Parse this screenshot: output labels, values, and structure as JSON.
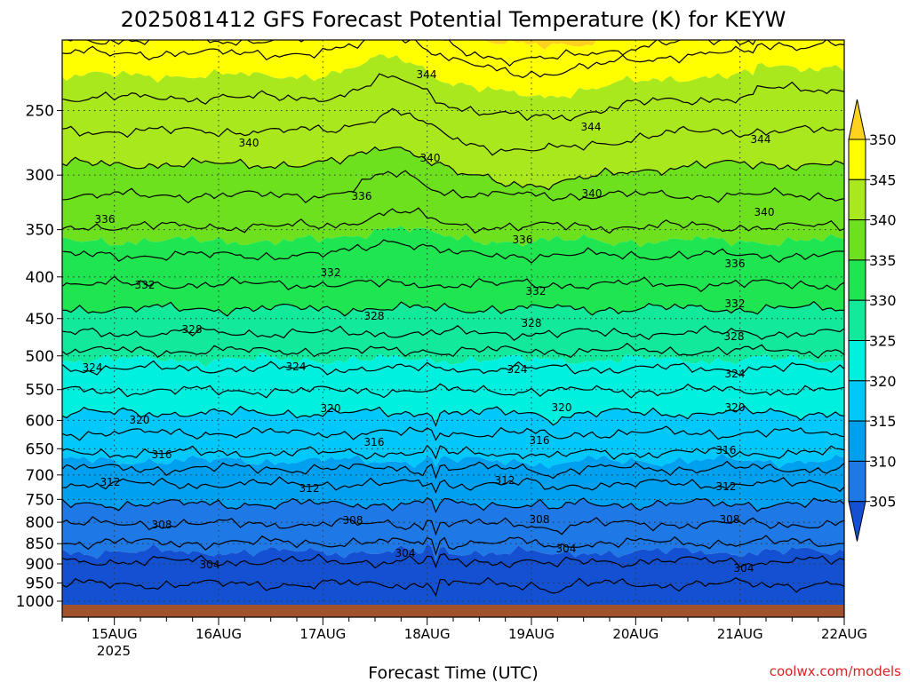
{
  "chart_data": {
    "type": "contour",
    "title": "2025081412 GFS Forecast Potential Temperature (K) for KEYW",
    "xlabel": "Forecast Time (UTC)",
    "ylabel": "",
    "credit": "coolwx.com/models",
    "credit_color": "#dd2222",
    "x_ticks": [
      "15AUG",
      "16AUG",
      "17AUG",
      "18AUG",
      "19AUG",
      "20AUG",
      "21AUG",
      "22AUG"
    ],
    "x_year": "2025",
    "y_ticks": [
      "250",
      "300",
      "350",
      "400",
      "450",
      "500",
      "550",
      "600",
      "650",
      "700",
      "750",
      "800",
      "850",
      "900",
      "950",
      "1000"
    ],
    "y_tick_values": [
      250,
      300,
      350,
      400,
      450,
      500,
      550,
      600,
      650,
      700,
      750,
      800,
      850,
      900,
      950,
      1000
    ],
    "y_range_hPa": [
      200,
      1013
    ],
    "x_range_days": [
      14.5,
      22.0
    ],
    "colorbar_ticks": [
      "350",
      "345",
      "340",
      "335",
      "330",
      "325",
      "320",
      "315",
      "310",
      "305"
    ],
    "colorbar_colors": [
      "#ffd21e",
      "#ffff00",
      "#aae81e",
      "#6ee11e",
      "#1ee550",
      "#12e99a",
      "#00f0e0",
      "#00c8fa",
      "#00a0f0",
      "#1e78e6",
      "#1450d2"
    ],
    "terrain_color": "#a0522d",
    "contour_interval_K": 2,
    "contour_labels": [
      {
        "text": "344",
        "x": 480,
        "y": 84
      },
      {
        "text": "344",
        "x": 665,
        "y": 143
      },
      {
        "text": "344",
        "x": 856,
        "y": 157
      },
      {
        "text": "340",
        "x": 280,
        "y": 161
      },
      {
        "text": "340",
        "x": 484,
        "y": 178
      },
      {
        "text": "340",
        "x": 666,
        "y": 218
      },
      {
        "text": "340",
        "x": 860,
        "y": 239
      },
      {
        "text": "336",
        "x": 118,
        "y": 247
      },
      {
        "text": "336",
        "x": 407,
        "y": 221
      },
      {
        "text": "336",
        "x": 588,
        "y": 270
      },
      {
        "text": "336",
        "x": 827,
        "y": 297
      },
      {
        "text": "332",
        "x": 163,
        "y": 321
      },
      {
        "text": "332",
        "x": 372,
        "y": 307
      },
      {
        "text": "332",
        "x": 603,
        "y": 328
      },
      {
        "text": "332",
        "x": 827,
        "y": 342
      },
      {
        "text": "328",
        "x": 216,
        "y": 371
      },
      {
        "text": "328",
        "x": 421,
        "y": 356
      },
      {
        "text": "328",
        "x": 598,
        "y": 364
      },
      {
        "text": "328",
        "x": 826,
        "y": 379
      },
      {
        "text": "324",
        "x": 104,
        "y": 414
      },
      {
        "text": "324",
        "x": 333,
        "y": 413
      },
      {
        "text": "324",
        "x": 582,
        "y": 416
      },
      {
        "text": "324",
        "x": 827,
        "y": 421
      },
      {
        "text": "320",
        "x": 157,
        "y": 473
      },
      {
        "text": "320",
        "x": 372,
        "y": 460
      },
      {
        "text": "320",
        "x": 632,
        "y": 459
      },
      {
        "text": "320",
        "x": 827,
        "y": 459
      },
      {
        "text": "316",
        "x": 182,
        "y": 512
      },
      {
        "text": "316",
        "x": 421,
        "y": 498
      },
      {
        "text": "316",
        "x": 607,
        "y": 496
      },
      {
        "text": "316",
        "x": 817,
        "y": 507
      },
      {
        "text": "312",
        "x": 124,
        "y": 543
      },
      {
        "text": "312",
        "x": 348,
        "y": 550
      },
      {
        "text": "312",
        "x": 568,
        "y": 541
      },
      {
        "text": "312",
        "x": 817,
        "y": 548
      },
      {
        "text": "308",
        "x": 182,
        "y": 591
      },
      {
        "text": "308",
        "x": 397,
        "y": 586
      },
      {
        "text": "308",
        "x": 607,
        "y": 585
      },
      {
        "text": "308",
        "x": 821,
        "y": 585
      },
      {
        "text": "304",
        "x": 236,
        "y": 636
      },
      {
        "text": "304",
        "x": 456,
        "y": 623
      },
      {
        "text": "304",
        "x": 637,
        "y": 618
      },
      {
        "text": "304",
        "x": 837,
        "y": 640
      }
    ]
  }
}
